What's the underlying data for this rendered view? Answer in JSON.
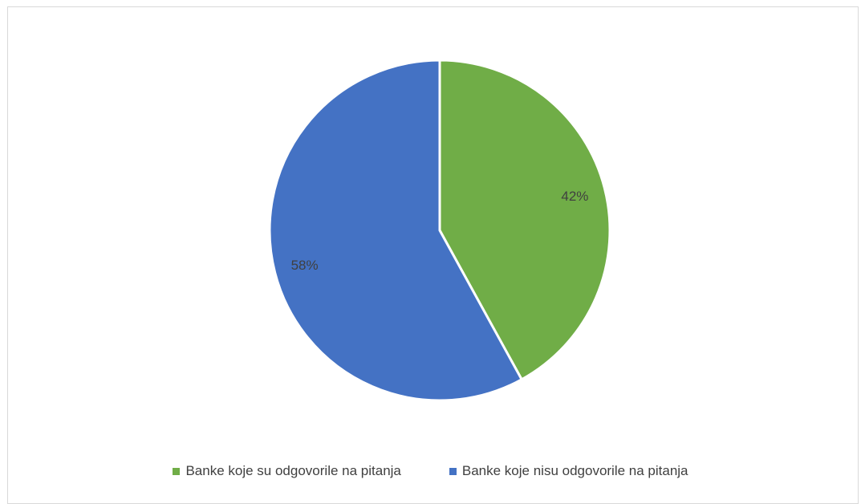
{
  "chart_data": {
    "type": "pie",
    "title": "",
    "start_angle_deg": 0,
    "direction": "clockwise",
    "categories": [
      "Banke koje su odgovorile na pitanja",
      "Banke koje nisu odgovorile na pitanja"
    ],
    "values": [
      42,
      58
    ],
    "data_labels": [
      "42%",
      "58%"
    ],
    "colors": [
      "#70AD47",
      "#4472C4"
    ],
    "legend_position": "bottom"
  }
}
